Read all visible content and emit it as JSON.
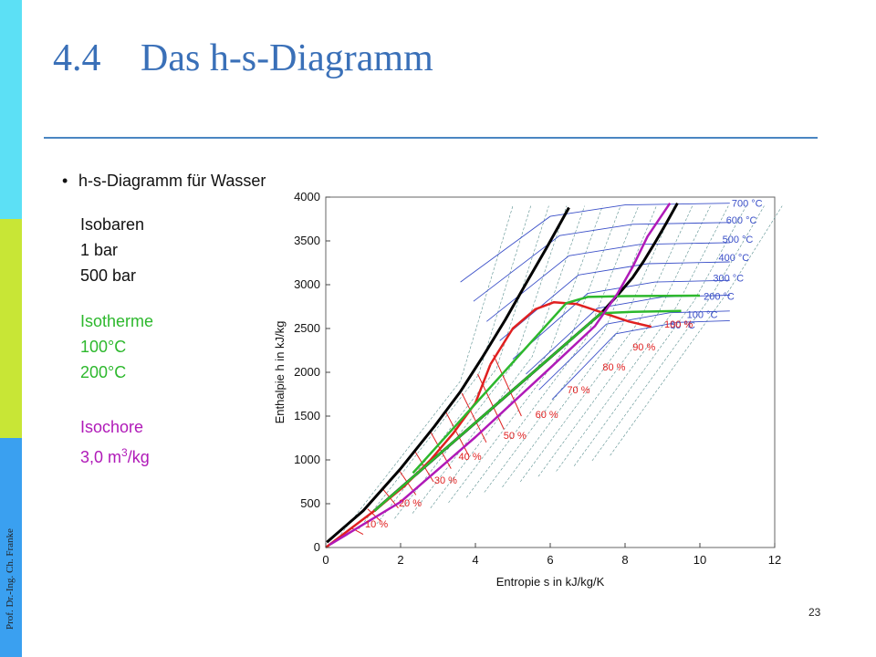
{
  "slide": {
    "title_number": "4.4",
    "title_text": "Das h-s-Diagramm",
    "bullet": "h-s-Diagramm für Wasser",
    "author": "Prof. Dr.-Ing. Ch. Franke",
    "page_number": "23"
  },
  "legend": {
    "isobaren": {
      "heading": "Isobaren",
      "line1": "1 bar",
      "line2": "500 bar"
    },
    "isotherme": {
      "heading": "Isotherme",
      "line1": "100°C",
      "line2": "200°C"
    },
    "isochore": {
      "heading": "Isochore",
      "value": "3,0 m",
      "sup": "3",
      "unit": "/kg"
    }
  },
  "colors": {
    "isobar_highlight": "#000000",
    "isotherm_highlight": "#2db82d",
    "isochore_highlight": "#b01ab8",
    "quality_lines": "#e02020",
    "isotherms": "#3a4fc8",
    "isochores": "#5a8f8f"
  },
  "chart_data": {
    "type": "line",
    "xlabel": "Entropie s in kJ/kg/K",
    "ylabel": "Enthalpie h in kJ/kg",
    "xlim": [
      0,
      12
    ],
    "ylim": [
      0,
      4000
    ],
    "xticks": [
      0,
      2,
      4,
      6,
      8,
      10,
      12
    ],
    "yticks": [
      0,
      500,
      1000,
      1500,
      2000,
      2500,
      3000,
      3500,
      4000
    ],
    "grid": false,
    "isotherm_labels": [
      "700 °C",
      "600 °C",
      "500 °C",
      "400 °C",
      "300 °C",
      "200 °C",
      "100 °C",
      "50 °C"
    ],
    "quality_labels": [
      "10 %",
      "20 %",
      "30 %",
      "40 %",
      "50 %",
      "60 %",
      "70 %",
      "80 %",
      "90 %",
      "100 %"
    ],
    "series": [
      {
        "key": "isobar_500",
        "color": "#000000",
        "x": [
          0.03,
          1.0,
          2.0,
          2.9,
          3.6,
          4.2,
          4.8,
          5.4,
          5.9,
          6.2,
          6.5
        ],
        "y": [
          60,
          420,
          900,
          1380,
          1780,
          2180,
          2600,
          3050,
          3420,
          3650,
          3880
        ]
      },
      {
        "key": "isobar_1",
        "color": "#000000",
        "x": [
          1.3,
          7.36,
          7.8,
          8.2,
          8.5,
          8.8,
          9.1,
          9.4
        ],
        "y": [
          420,
          2675,
          2880,
          3080,
          3270,
          3480,
          3700,
          3930
        ]
      },
      {
        "key": "saturated_liquid",
        "color": "#e02020",
        "x": [
          0.0,
          1.3,
          2.1,
          2.8,
          3.4,
          4.0,
          4.4
        ],
        "y": [
          0,
          420,
          700,
          1000,
          1300,
          1650,
          2090
        ]
      },
      {
        "key": "saturated_vapor",
        "color": "#e02020",
        "x": [
          4.4,
          5.0,
          5.6,
          6.1,
          6.7,
          7.4,
          8.1,
          8.7
        ],
        "y": [
          2090,
          2500,
          2720,
          2800,
          2780,
          2680,
          2580,
          2520
        ]
      },
      {
        "key": "isotherm_100",
        "color": "#2db82d",
        "x": [
          1.3,
          7.36,
          8.2,
          9.5
        ],
        "y": [
          420,
          2675,
          2690,
          2700
        ]
      },
      {
        "key": "isotherm_200",
        "color": "#2db82d",
        "x": [
          2.33,
          6.43,
          7.0,
          8.0,
          10.0
        ],
        "y": [
          850,
          2790,
          2860,
          2870,
          2875
        ]
      },
      {
        "key": "isochore_3",
        "color": "#b01ab8",
        "x": [
          0.1,
          2.0,
          4.0,
          6.0,
          7.2,
          7.8,
          8.2,
          8.6,
          9.2
        ],
        "y": [
          30,
          520,
          1260,
          2050,
          2530,
          2900,
          3200,
          3550,
          3930
        ]
      }
    ]
  }
}
